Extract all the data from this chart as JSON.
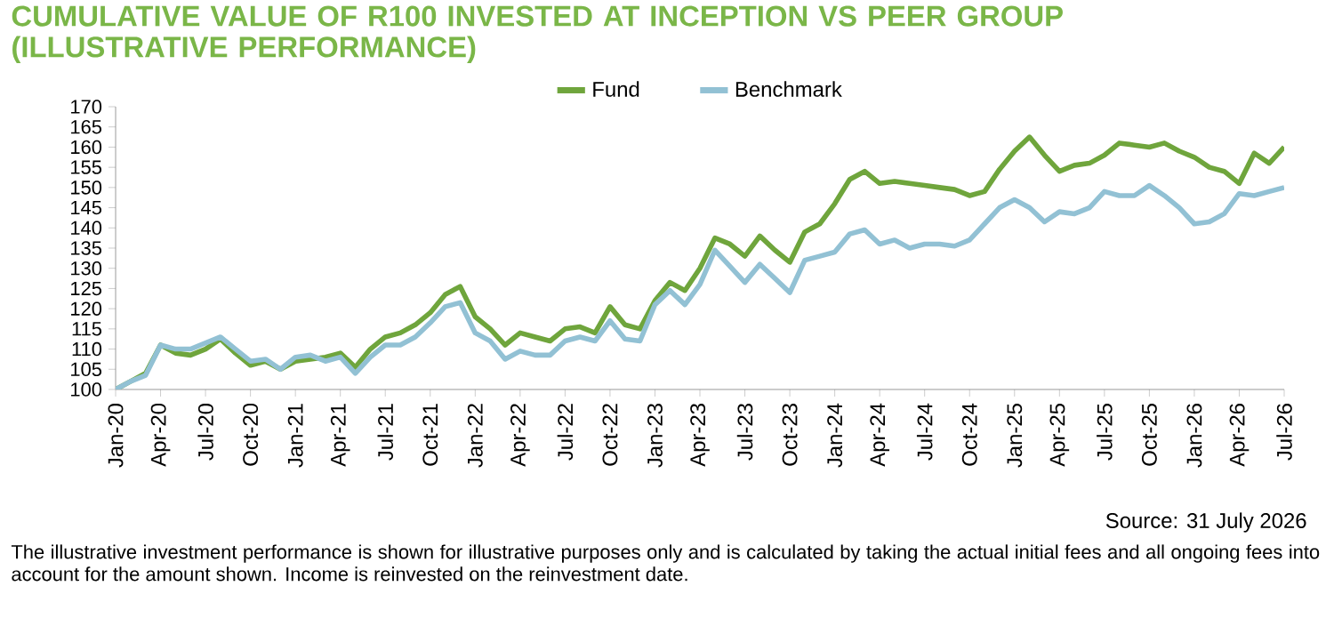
{
  "chart_data": {
    "type": "line",
    "title": "CUMULATIVE VALUE OF R100 INVESTED AT INCEPTION VS PEER GROUP (ILLUSTRATIVE PERFORMANCE)",
    "categories": [
      "Jan-20",
      null,
      null,
      "Apr-20",
      null,
      null,
      "Jul-20",
      null,
      null,
      "Oct-20",
      null,
      null,
      "Jan-21",
      null,
      null,
      "Apr-21",
      null,
      null,
      "Jul-21",
      null,
      null,
      "Oct-21",
      null,
      null,
      "Jan-22",
      null,
      null,
      "Apr-22",
      null,
      null,
      "Jul-22",
      null,
      null,
      "Oct-22",
      null,
      null,
      "Jan-23",
      null,
      null,
      "Apr-23",
      null,
      null,
      "Jul-23",
      null,
      null,
      "Oct-23",
      null,
      null,
      "Jan-24",
      null,
      null,
      "Apr-24",
      null,
      null,
      "Jul-24",
      null,
      null,
      "Oct-24",
      null,
      null,
      "Jan-25",
      null,
      null,
      "Apr-25",
      null,
      null,
      "Jul-25",
      null,
      null,
      "Oct-25",
      null,
      null,
      "Jan-26",
      null,
      null,
      "Apr-26",
      null,
      null,
      "Jul-26"
    ],
    "series": [
      {
        "name": "Fund",
        "color": "#6fa53c",
        "values": [
          100,
          102,
          104,
          111,
          109,
          108.5,
          110,
          112.5,
          109,
          106,
          107,
          105,
          107,
          107.5,
          108,
          109,
          105.5,
          110,
          113,
          114,
          116,
          119,
          123.5,
          125.5,
          118,
          115,
          111,
          114,
          113,
          112,
          115,
          115.5,
          114,
          120.5,
          116,
          115,
          122,
          126.5,
          124.5,
          130,
          137.5,
          136,
          133,
          138,
          134.5,
          131.5,
          139,
          141,
          146,
          152,
          154,
          151,
          151.5,
          151,
          150.5,
          150,
          149.5,
          148,
          149,
          154.5,
          159,
          162.5,
          158,
          154,
          155.5,
          156,
          158,
          161,
          160.5,
          160,
          161,
          159,
          157.5,
          155,
          154,
          151,
          158.5,
          156,
          160
        ]
      },
      {
        "name": "Benchmark",
        "color": "#92c1d4",
        "values": [
          100,
          102,
          103.5,
          111,
          110,
          110,
          111.5,
          113,
          110,
          107,
          107.5,
          105,
          108,
          108.5,
          107,
          108,
          104,
          108,
          111,
          111,
          113,
          116.5,
          120.5,
          121.5,
          114,
          112,
          107.5,
          109.5,
          108.5,
          108.5,
          112,
          113,
          112,
          117,
          112.5,
          112,
          121,
          124.5,
          121,
          126,
          134.5,
          130.5,
          126.5,
          131,
          127.5,
          124,
          132,
          133,
          134,
          138.5,
          139.5,
          136,
          137,
          135,
          136,
          136,
          135.5,
          137,
          141,
          145,
          147,
          145,
          141.5,
          144,
          143.5,
          145,
          149,
          148,
          148,
          150.5,
          148,
          145,
          141,
          141.5,
          143.5,
          148.5,
          148,
          149,
          150
        ]
      }
    ],
    "ylim": [
      100,
      170
    ],
    "yticks": [
      100,
      105,
      110,
      115,
      120,
      125,
      130,
      135,
      140,
      145,
      150,
      155,
      160,
      165,
      170
    ],
    "legend": "top",
    "annotations": [
      "Source: 31 July 2026",
      "The illustrative investment performance is shown for illustrative purposes only and is calculated by taking the actual initial fees and all ongoing fees into account for the amount shown. Income is reinvested on the reinvestment date."
    ]
  }
}
